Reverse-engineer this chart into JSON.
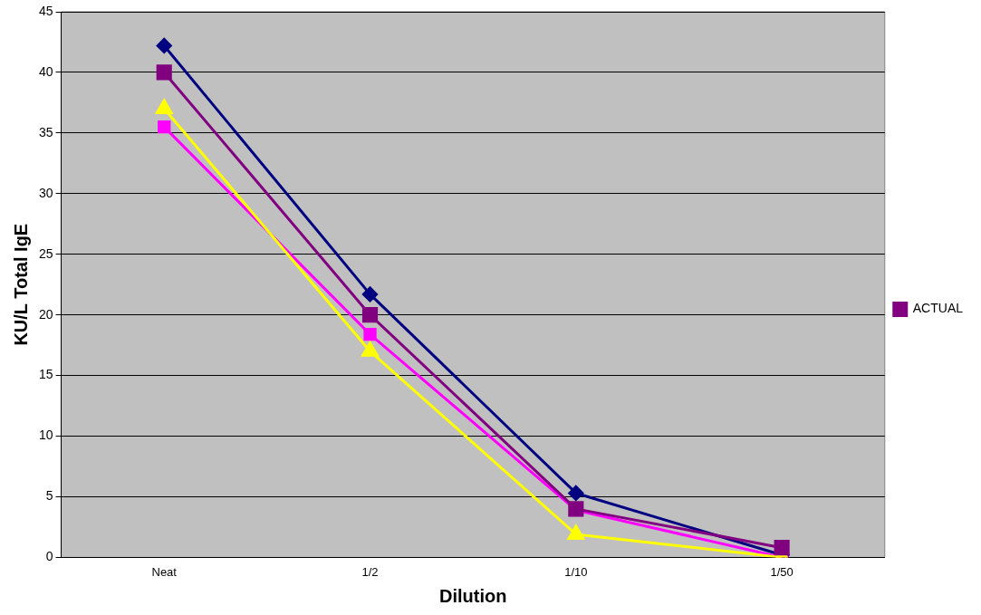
{
  "chart_data": {
    "type": "line",
    "xlabel": "Dilution",
    "ylabel": "KU/L Total IgE",
    "categories": [
      "Neat",
      "1/2",
      "1/10",
      "1/50"
    ],
    "series": [
      {
        "color": "#000080",
        "marker": "diamond",
        "values": [
          42.2,
          21.7,
          5.3,
          0.2
        ]
      },
      {
        "color": "#ff00ff",
        "marker": "square",
        "values": [
          35.5,
          18.4,
          3.9,
          0
        ]
      },
      {
        "color": "#ffff00",
        "marker": "triangle",
        "values": [
          37,
          17,
          1.9,
          0
        ]
      },
      {
        "name": "ACTUAL",
        "color": "#800080",
        "marker": "square",
        "values": [
          40,
          20,
          4,
          0.8
        ]
      }
    ],
    "ylim": [
      0,
      45
    ],
    "yticks": [
      0,
      5,
      10,
      15,
      20,
      25,
      30,
      35,
      40,
      45
    ],
    "grid": "y",
    "legend": "right"
  }
}
